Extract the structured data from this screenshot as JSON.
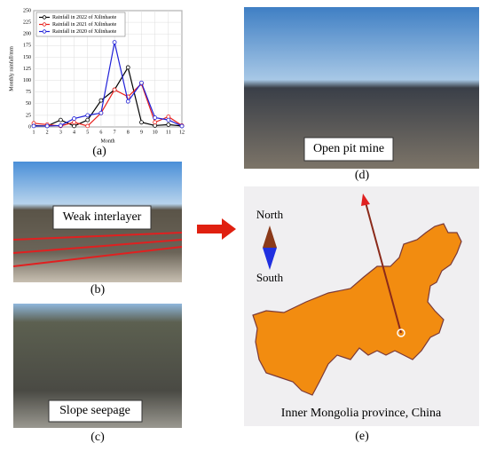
{
  "chart_data": {
    "type": "line",
    "x": [
      1,
      2,
      3,
      4,
      5,
      6,
      7,
      8,
      9,
      10,
      11,
      12
    ],
    "xlim": [
      1,
      12
    ],
    "xticks": [
      1,
      2,
      3,
      4,
      5,
      6,
      7,
      8,
      9,
      10,
      11,
      12
    ],
    "ylim": [
      0,
      250
    ],
    "yticks": [
      0,
      25,
      50,
      75,
      100,
      125,
      150,
      175,
      200,
      225,
      250
    ],
    "x_label": "Month",
    "y_label": "Monthly rainfall/mm",
    "legend": "upper left",
    "series": [
      {
        "name": "Rainfall in 2022 of Xilinhaote",
        "color": "#000000",
        "values": [
          3,
          2,
          15,
          2,
          15,
          57,
          80,
          128,
          10,
          3,
          5,
          2
        ]
      },
      {
        "name": "Rainfall in 2021 of Xilinhaote",
        "color": "#e8201c",
        "values": [
          8,
          5,
          2,
          10,
          2,
          30,
          80,
          65,
          93,
          10,
          22,
          3
        ]
      },
      {
        "name": "Rainfall in 2020 of Xilinhaote",
        "color": "#2020d8",
        "values": [
          2,
          2,
          3,
          18,
          25,
          30,
          182,
          55,
          95,
          20,
          15,
          2
        ]
      }
    ]
  },
  "captions": {
    "a": "(a)",
    "b": "(b)",
    "c": "(c)",
    "d": "(d)",
    "e": "(e)"
  },
  "labels": {
    "b": "Weak interlayer",
    "c": "Slope seepage",
    "d": "Open pit mine",
    "e": "Inner Mongolia province, China",
    "north": "North",
    "south": "South"
  }
}
